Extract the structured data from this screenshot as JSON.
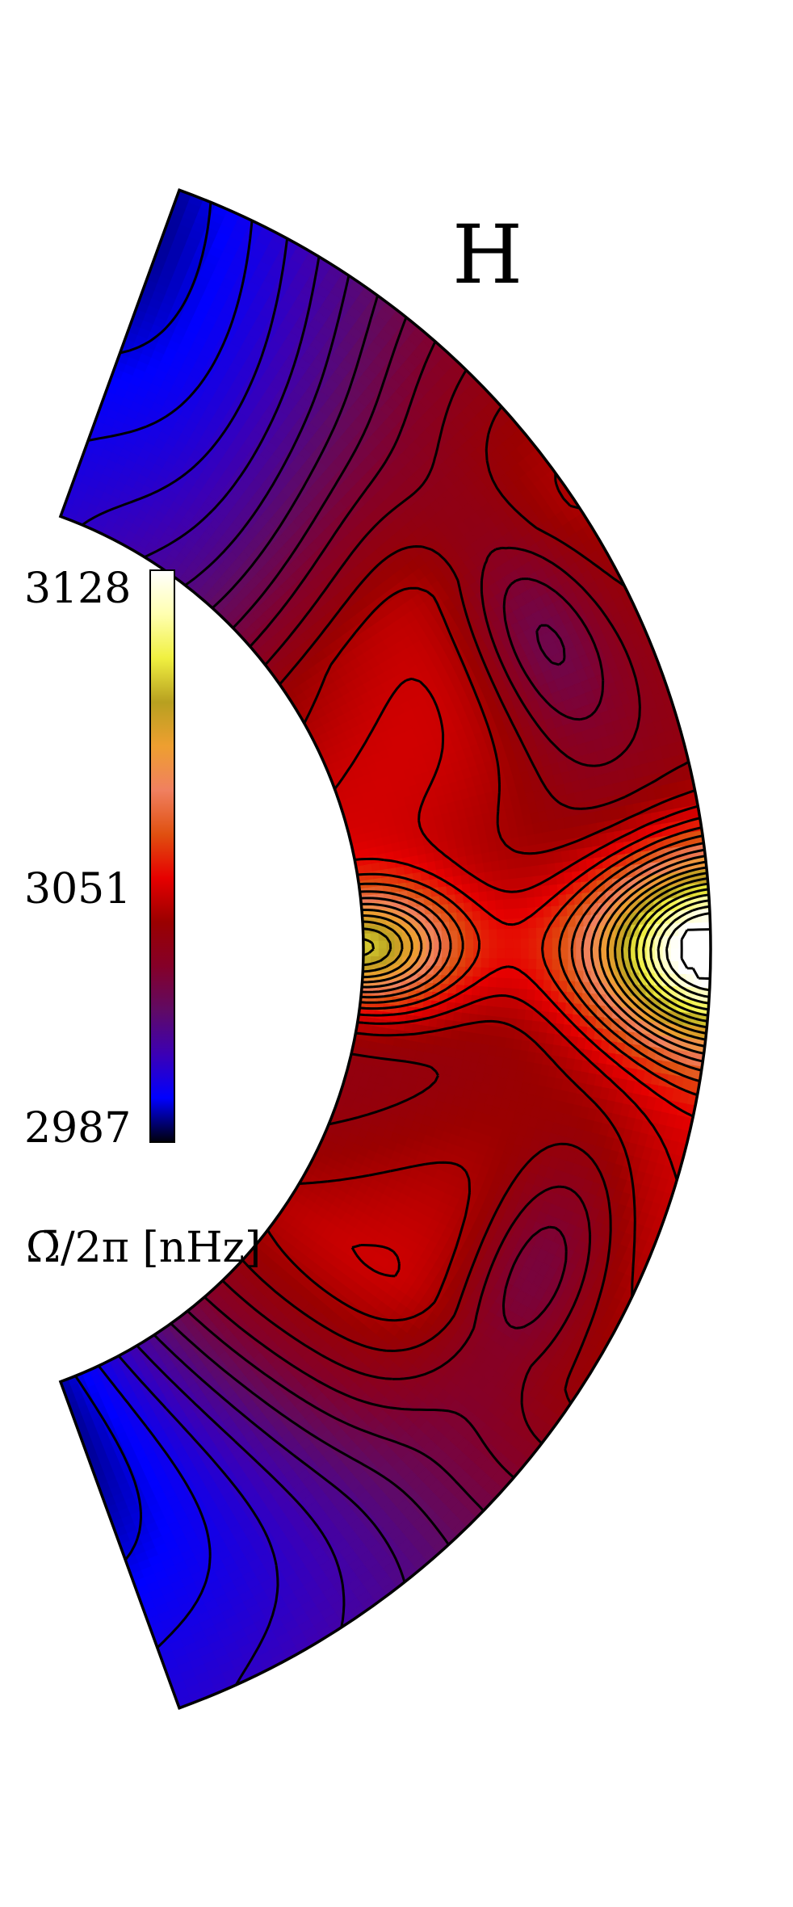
{
  "panel_label": "H",
  "colors": {
    "colormap": [
      "#00000a",
      "#0000ff",
      "#3c00b4",
      "#600a64",
      "#850028",
      "#9a0000",
      "#e60000",
      "#e05010",
      "#f08060",
      "#ee9f30",
      "#b8a020",
      "#f0f040",
      "#ffffb0",
      "#ffffff"
    ],
    "contour_line": "#000000",
    "background": "#ffffff"
  },
  "chart_data": {
    "type": "heatmap",
    "title": "",
    "colorbar": {
      "label": "Ω̄/2π [nHz]",
      "ticks": [
        3128,
        3051,
        2987
      ],
      "range": [
        2987,
        3128
      ]
    },
    "domain": {
      "geometry": "meridional half-annulus",
      "colatitude_range_deg": [
        20,
        160
      ],
      "equator": "right"
    },
    "features": {
      "equator_max_nHz": 3128,
      "inner_equatorial_maximum_nHz": 3090,
      "polar_minimum_nHz": 2987,
      "midlatitude_outer_minimum_nHz": 3030,
      "contour_interval_nHz": 4.7
    }
  }
}
